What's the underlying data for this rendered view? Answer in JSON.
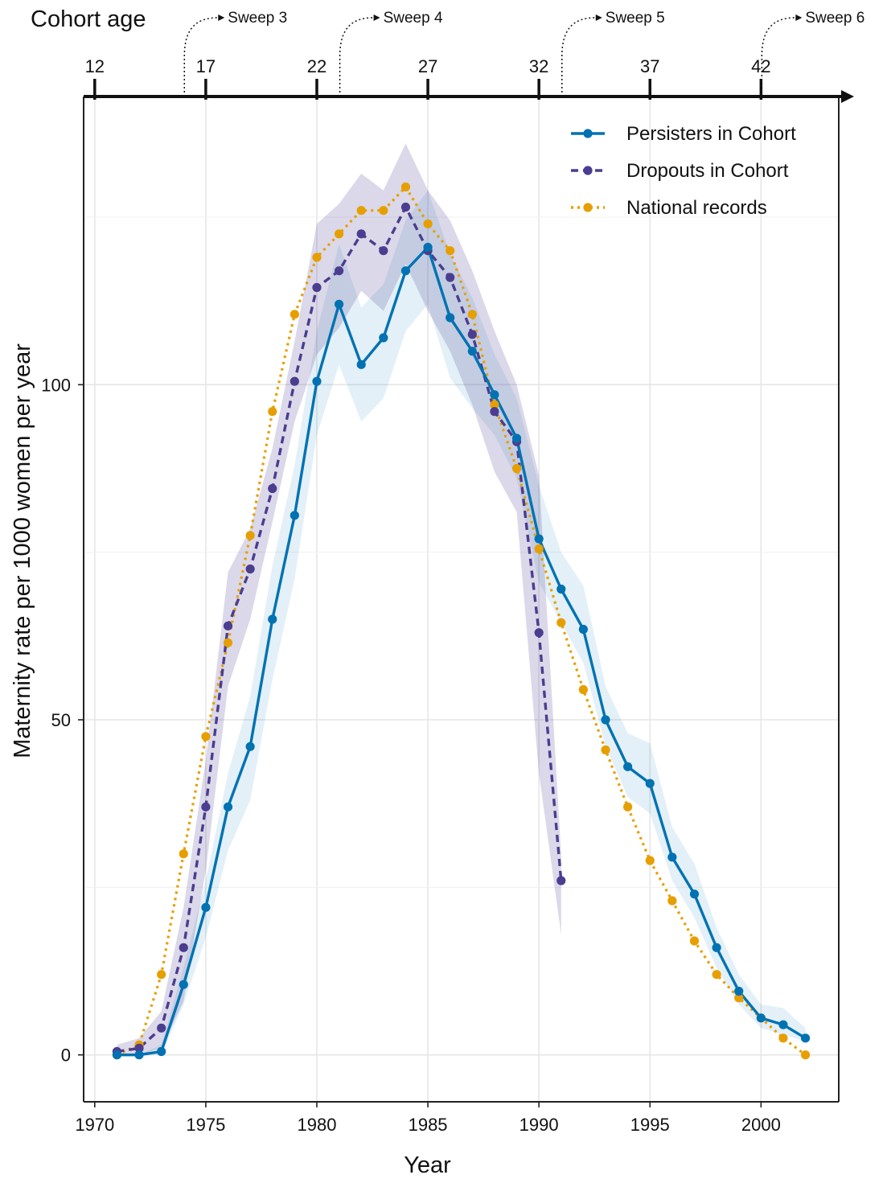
{
  "chart_data": {
    "type": "line",
    "xlabel": "Year",
    "ylabel": "Maternity rate per 1000 women per year",
    "top_axis_title": "Cohort age",
    "xlim": [
      1969.5,
      2003.5
    ],
    "ylim": [
      -7,
      143
    ],
    "x_ticks": [
      1970,
      1975,
      1980,
      1985,
      1990,
      1995,
      2000
    ],
    "y_ticks": [
      0,
      50,
      100
    ],
    "y_minor_gridlines": [
      25,
      75,
      125
    ],
    "grid": true,
    "legend_position": "top-right",
    "top_axis_ticks": [
      {
        "year": 1970,
        "label": "12"
      },
      {
        "year": 1975,
        "label": "17"
      },
      {
        "year": 1980,
        "label": "22"
      },
      {
        "year": 1985,
        "label": "27"
      },
      {
        "year": 1990,
        "label": "32"
      },
      {
        "year": 1995,
        "label": "37"
      },
      {
        "year": 2000,
        "label": "42"
      }
    ],
    "sweeps": [
      {
        "year": 1974,
        "label": "Sweep 3"
      },
      {
        "year": 1981,
        "label": "Sweep 4"
      },
      {
        "year": 1991,
        "label": "Sweep 5"
      },
      {
        "year": 2000,
        "label": "Sweep 6"
      }
    ],
    "series": [
      {
        "name": "Persisters in Cohort",
        "color": "#0072B2",
        "dash": "solid",
        "x": [
          1971,
          1972,
          1973,
          1974,
          1975,
          1976,
          1977,
          1978,
          1979,
          1980,
          1981,
          1982,
          1983,
          1984,
          1985,
          1986,
          1987,
          1988,
          1989,
          1990,
          1991,
          1992,
          1993,
          1994,
          1995,
          1996,
          1997,
          1998,
          1999,
          2000,
          2001,
          2002
        ],
        "values": [
          0,
          0,
          0.5,
          10.5,
          22,
          37,
          46,
          65,
          80.5,
          100.5,
          112,
          103,
          107,
          117,
          120.5,
          110,
          105,
          98.5,
          92,
          77,
          69.5,
          63.5,
          50,
          43,
          40.5,
          29.5,
          24,
          16,
          9.5,
          5.5,
          4.5,
          2.5
        ],
        "band_lower": [
          0,
          0,
          0,
          7.5,
          17.5,
          30.5,
          38,
          56,
          71,
          92.5,
          103,
          94.5,
          98,
          108,
          112,
          101,
          96.5,
          92.5,
          86,
          70.5,
          64.5,
          58.5,
          46,
          38.5,
          36,
          26,
          20.5,
          13,
          7.5,
          4,
          3,
          2
        ],
        "band_upper": [
          0,
          0,
          1.5,
          13,
          26,
          42,
          53.5,
          73,
          88,
          108,
          121,
          111.5,
          115,
          124.5,
          129,
          119.5,
          113,
          104.5,
          98,
          85,
          75,
          70,
          55,
          48,
          46.5,
          34,
          28.5,
          19,
          12,
          7.5,
          7,
          4
        ]
      },
      {
        "name": "Dropouts in Cohort",
        "color": "#4B3D8F",
        "dash": "dashed",
        "x": [
          1971,
          1972,
          1973,
          1974,
          1975,
          1976,
          1977,
          1978,
          1979,
          1980,
          1981,
          1982,
          1983,
          1984,
          1985,
          1986,
          1987,
          1988,
          1989,
          1990,
          1991
        ],
        "values": [
          0.5,
          1,
          4,
          16,
          37,
          64,
          72.5,
          84.5,
          100.5,
          114.5,
          117,
          122.5,
          120,
          126.5,
          120,
          116,
          107.5,
          96,
          91.5,
          63,
          26
        ],
        "band_lower": [
          0,
          0,
          1,
          8,
          27.5,
          55,
          65,
          79.5,
          94.5,
          104.5,
          108.5,
          114,
          111,
          118,
          111,
          105,
          97,
          87,
          81,
          42,
          18
        ],
        "band_upper": [
          1.5,
          2.5,
          6.5,
          22,
          44,
          72,
          78.5,
          90.5,
          106.5,
          124,
          127,
          131.5,
          129,
          136,
          129,
          124.5,
          117,
          108,
          100,
          86.5,
          30
        ]
      },
      {
        "name": "National records",
        "color": "#E69F00",
        "dash": "dotted",
        "x": [
          1971,
          1972,
          1973,
          1974,
          1975,
          1976,
          1977,
          1978,
          1979,
          1980,
          1981,
          1982,
          1983,
          1984,
          1985,
          1986,
          1987,
          1988,
          1989,
          1990,
          1991,
          1992,
          1993,
          1994,
          1995,
          1996,
          1997,
          1998,
          1999,
          2000,
          2001,
          2002
        ],
        "values": [
          0,
          1.5,
          12,
          30,
          47.5,
          61.5,
          77.5,
          96,
          110.5,
          119,
          122.5,
          126,
          126,
          129.5,
          124,
          120,
          110.5,
          97,
          87.5,
          75.5,
          64.5,
          54.5,
          45.5,
          37,
          29,
          23,
          17,
          12,
          8.5,
          5.5,
          2.5,
          0
        ]
      }
    ]
  }
}
